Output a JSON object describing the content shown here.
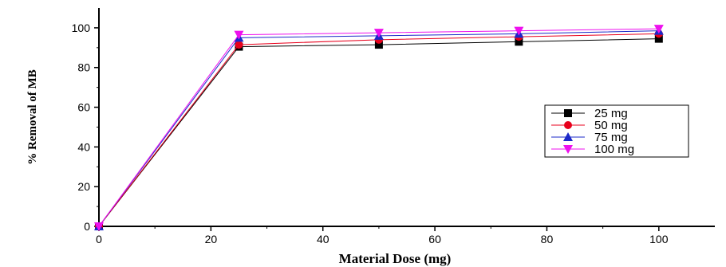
{
  "chart_data": {
    "type": "line",
    "xlabel": "Material Dose (mg)",
    "ylabel": "% Removal of MB",
    "xlim": [
      0,
      110
    ],
    "ylim": [
      0,
      110
    ],
    "x_ticks": [
      0,
      20,
      40,
      60,
      80,
      100
    ],
    "y_ticks": [
      0,
      20,
      40,
      60,
      80,
      100
    ],
    "x": [
      0,
      25,
      50,
      75,
      100
    ],
    "legend_position": "right",
    "series": [
      {
        "name": "25 mg",
        "marker": "square",
        "color": "#000000",
        "values": [
          0,
          90.5,
          91.5,
          93,
          94.5
        ]
      },
      {
        "name": "50 mg",
        "marker": "circle",
        "color": "#e8001c",
        "values": [
          0,
          91.5,
          94,
          95.5,
          97
        ]
      },
      {
        "name": "75 mg",
        "marker": "triangle-up",
        "color": "#1b28c8",
        "values": [
          0,
          95,
          96,
          97,
          98.5
        ]
      },
      {
        "name": "100 mg",
        "marker": "triangle-down",
        "color": "#ee10ee",
        "values": [
          0,
          96.5,
          97.5,
          98.5,
          99.5
        ]
      }
    ]
  }
}
